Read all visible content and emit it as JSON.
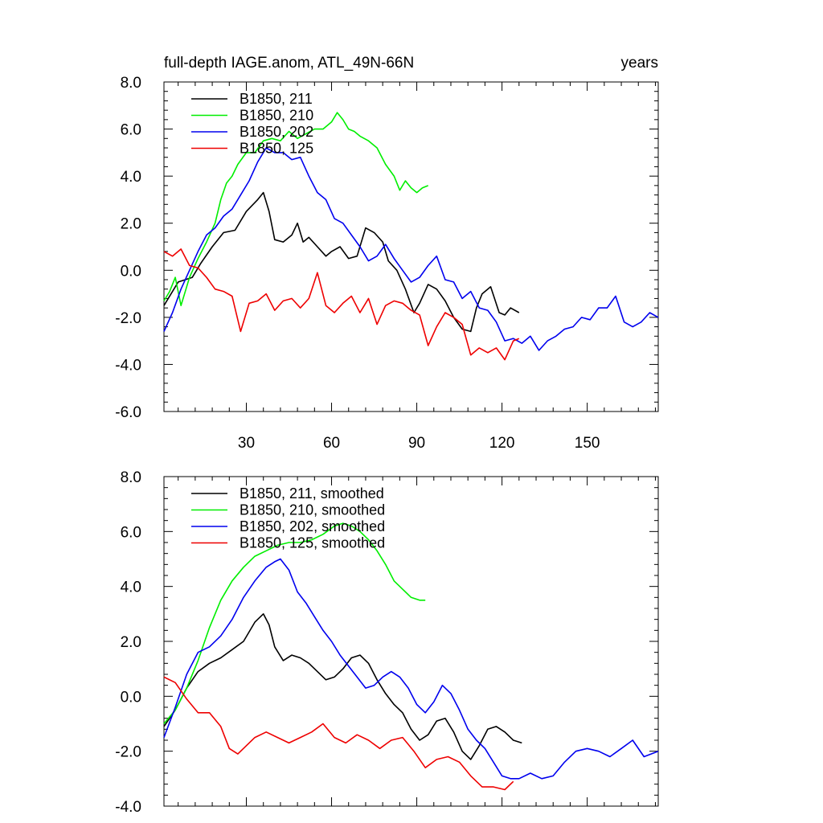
{
  "figure": {
    "title_left": "full-depth IAGE.anom, ATL_49N-66N",
    "title_right": "years",
    "colors": {
      "s211": "#000000",
      "s210": "#00ee00",
      "s202": "#0000ee",
      "s125": "#ee0000"
    }
  },
  "chart_data": [
    {
      "type": "line",
      "xlim": [
        1,
        175
      ],
      "ylim": [
        -6,
        8
      ],
      "yticks": [
        8,
        6,
        4,
        2,
        0,
        -2,
        -4,
        -6
      ],
      "ytick_labels": [
        "8.0",
        "6.0",
        "4.0",
        "2.0",
        "0.0",
        "-2.0",
        "-4.0",
        "-6.0"
      ],
      "xticks": [
        30,
        60,
        90,
        120,
        150
      ],
      "xtick_labels": [
        "30",
        "60",
        "90",
        "120",
        "150"
      ],
      "legend": [
        "B1850, 211",
        "B1850, 210",
        "B1850, 202",
        "B1850, 125"
      ],
      "legend_position": "top-left",
      "series": [
        {
          "name": "B1850, 211",
          "color": "#000000",
          "x": [
            1,
            6,
            11,
            14,
            18,
            22,
            26,
            30,
            34,
            36,
            38,
            40,
            43,
            46,
            48,
            50,
            52,
            55,
            58,
            60,
            63,
            66,
            69,
            72,
            75,
            78,
            80,
            83,
            86,
            89,
            91,
            94,
            97,
            100,
            103,
            106,
            109,
            111,
            113,
            116,
            119,
            121,
            123,
            126
          ],
          "y": [
            -1.5,
            -0.5,
            -0.3,
            0.3,
            1.0,
            1.6,
            1.7,
            2.5,
            3.0,
            3.3,
            2.5,
            1.3,
            1.2,
            1.5,
            2.0,
            1.2,
            1.4,
            1.0,
            0.6,
            0.8,
            1.0,
            0.5,
            0.6,
            1.8,
            1.6,
            1.2,
            0.4,
            0.0,
            -0.8,
            -1.8,
            -1.4,
            -0.6,
            -0.8,
            -1.3,
            -2.0,
            -2.5,
            -2.6,
            -1.6,
            -1.0,
            -0.7,
            -1.8,
            -1.9,
            -1.6,
            -1.8
          ]
        },
        {
          "name": "B1850, 210",
          "color": "#00ee00",
          "x": [
            1,
            3,
            5,
            7,
            10,
            13,
            16,
            19,
            21,
            23,
            25,
            27,
            30,
            33,
            36,
            39,
            42,
            45,
            48,
            51,
            54,
            57,
            60,
            62,
            64,
            66,
            68,
            70,
            73,
            76,
            79,
            82,
            84,
            86,
            88,
            90,
            92,
            94
          ],
          "y": [
            -1.3,
            -0.9,
            -0.3,
            -1.5,
            -0.3,
            0.5,
            1.2,
            2.0,
            3.0,
            3.7,
            4.0,
            4.5,
            5.0,
            5.0,
            5.5,
            5.6,
            5.5,
            5.9,
            5.6,
            5.8,
            6.0,
            6.0,
            6.3,
            6.7,
            6.4,
            6.0,
            5.9,
            5.7,
            5.5,
            5.2,
            4.5,
            4.0,
            3.4,
            3.8,
            3.5,
            3.3,
            3.5,
            3.6
          ]
        },
        {
          "name": "B1850, 202",
          "color": "#0000ee",
          "x": [
            1,
            4,
            7,
            10,
            13,
            16,
            19,
            22,
            25,
            28,
            31,
            34,
            37,
            40,
            43,
            46,
            49,
            52,
            55,
            58,
            61,
            64,
            67,
            70,
            73,
            76,
            79,
            82,
            85,
            88,
            91,
            94,
            97,
            100,
            103,
            106,
            109,
            112,
            115,
            118,
            121,
            124,
            127,
            130,
            133,
            136,
            139,
            142,
            145,
            148,
            151,
            154,
            157,
            160,
            163,
            166,
            169,
            172,
            175
          ],
          "y": [
            -2.6,
            -1.8,
            -0.8,
            0.0,
            0.8,
            1.5,
            1.8,
            2.3,
            2.6,
            3.2,
            3.8,
            4.6,
            5.2,
            5.0,
            5.0,
            4.7,
            4.8,
            4.0,
            3.3,
            3.0,
            2.2,
            2.0,
            1.5,
            1.0,
            0.4,
            0.6,
            1.1,
            0.5,
            0.0,
            -0.5,
            -0.3,
            0.2,
            0.6,
            -0.4,
            -0.5,
            -1.2,
            -0.9,
            -1.6,
            -1.7,
            -2.2,
            -3.0,
            -2.9,
            -3.1,
            -2.8,
            -3.4,
            -3.0,
            -2.8,
            -2.5,
            -2.4,
            -2.0,
            -2.1,
            -1.6,
            -1.6,
            -1.1,
            -2.2,
            -2.4,
            -2.2,
            -1.8,
            -2.0
          ]
        },
        {
          "name": "B1850, 125",
          "color": "#ee0000",
          "x": [
            1,
            4,
            7,
            10,
            13,
            16,
            19,
            22,
            25,
            28,
            31,
            34,
            37,
            40,
            43,
            46,
            49,
            52,
            55,
            58,
            61,
            64,
            67,
            70,
            73,
            76,
            79,
            82,
            85,
            88,
            91,
            94,
            97,
            100,
            103,
            106,
            109,
            112,
            115,
            118,
            121,
            124,
            126
          ],
          "y": [
            0.8,
            0.6,
            0.9,
            0.2,
            0.1,
            -0.3,
            -0.8,
            -0.9,
            -1.1,
            -2.6,
            -1.4,
            -1.3,
            -1.0,
            -1.7,
            -1.3,
            -1.2,
            -1.6,
            -1.2,
            -0.1,
            -1.5,
            -1.8,
            -1.4,
            -1.1,
            -1.8,
            -1.2,
            -2.3,
            -1.5,
            -1.3,
            -1.4,
            -1.7,
            -1.9,
            -3.2,
            -2.4,
            -1.8,
            -2.0,
            -2.3,
            -3.6,
            -3.3,
            -3.5,
            -3.3,
            -3.8,
            -3.0,
            -2.9
          ]
        }
      ]
    },
    {
      "type": "line",
      "xlim": [
        1,
        175
      ],
      "ylim": [
        -4,
        8
      ],
      "yticks": [
        8,
        6,
        4,
        2,
        0,
        -2,
        -4
      ],
      "ytick_labels": [
        "8.0",
        "6.0",
        "4.0",
        "2.0",
        "0.0",
        "-2.0",
        "-4.0"
      ],
      "xticks": [
        30,
        60,
        90,
        120,
        150
      ],
      "xtick_labels": [],
      "legend": [
        "B1850, 211, smoothed",
        "B1850, 210, smoothed",
        "B1850, 202, smoothed",
        "B1850, 125, smoothed"
      ],
      "legend_position": "top-left",
      "series": [
        {
          "name": "B1850, 211, smoothed",
          "color": "#000000",
          "x": [
            1,
            5,
            9,
            13,
            17,
            21,
            25,
            29,
            33,
            36,
            38,
            40,
            43,
            46,
            49,
            52,
            55,
            58,
            61,
            64,
            67,
            70,
            73,
            76,
            79,
            82,
            85,
            88,
            91,
            94,
            97,
            100,
            103,
            106,
            109,
            112,
            115,
            118,
            121,
            124,
            127
          ],
          "y": [
            -1.1,
            -0.5,
            0.3,
            0.9,
            1.2,
            1.4,
            1.7,
            2.0,
            2.7,
            3.0,
            2.6,
            1.8,
            1.3,
            1.5,
            1.4,
            1.2,
            0.9,
            0.6,
            0.7,
            1.0,
            1.4,
            1.5,
            1.2,
            0.6,
            0.1,
            -0.3,
            -0.6,
            -1.2,
            -1.6,
            -1.4,
            -0.9,
            -0.8,
            -1.3,
            -2.0,
            -2.3,
            -1.8,
            -1.2,
            -1.1,
            -1.3,
            -1.6,
            -1.7
          ]
        },
        {
          "name": "B1850, 210, smoothed",
          "color": "#00ee00",
          "x": [
            1,
            5,
            9,
            13,
            17,
            21,
            25,
            29,
            33,
            37,
            41,
            45,
            49,
            53,
            57,
            61,
            64,
            67,
            70,
            73,
            76,
            79,
            82,
            85,
            88,
            91,
            93
          ],
          "y": [
            -1.0,
            -0.5,
            0.3,
            1.3,
            2.5,
            3.5,
            4.2,
            4.7,
            5.1,
            5.3,
            5.5,
            5.6,
            5.6,
            5.7,
            5.9,
            6.2,
            6.3,
            6.2,
            6.0,
            5.7,
            5.3,
            4.8,
            4.2,
            3.9,
            3.6,
            3.5,
            3.5
          ]
        },
        {
          "name": "B1850, 202, smoothed",
          "color": "#0000ee",
          "x": [
            1,
            5,
            9,
            13,
            17,
            21,
            25,
            29,
            33,
            37,
            40,
            42,
            45,
            48,
            51,
            54,
            57,
            60,
            63,
            66,
            69,
            72,
            75,
            78,
            81,
            84,
            87,
            90,
            93,
            96,
            99,
            102,
            105,
            108,
            111,
            114,
            117,
            120,
            123,
            126,
            130,
            134,
            138,
            142,
            146,
            150,
            154,
            158,
            162,
            166,
            170,
            175
          ],
          "y": [
            -1.5,
            -0.4,
            0.8,
            1.6,
            1.8,
            2.2,
            2.8,
            3.6,
            4.2,
            4.7,
            4.9,
            5.0,
            4.6,
            3.8,
            3.4,
            2.9,
            2.4,
            2.0,
            1.5,
            1.1,
            0.7,
            0.3,
            0.4,
            0.7,
            0.9,
            0.7,
            0.3,
            -0.3,
            -0.6,
            -0.2,
            0.4,
            0.1,
            -0.5,
            -1.2,
            -1.6,
            -1.9,
            -2.4,
            -2.9,
            -3.0,
            -3.0,
            -2.8,
            -3.0,
            -2.9,
            -2.4,
            -2.0,
            -1.9,
            -2.0,
            -2.2,
            -1.9,
            -1.6,
            -2.2,
            -2.0
          ]
        },
        {
          "name": "B1850, 125, smoothed",
          "color": "#ee0000",
          "x": [
            1,
            5,
            9,
            13,
            17,
            21,
            24,
            27,
            30,
            33,
            37,
            41,
            45,
            49,
            53,
            57,
            61,
            65,
            69,
            73,
            77,
            81,
            85,
            89,
            93,
            97,
            101,
            105,
            109,
            113,
            117,
            121,
            124
          ],
          "y": [
            0.7,
            0.5,
            -0.1,
            -0.6,
            -0.6,
            -1.1,
            -1.9,
            -2.1,
            -1.8,
            -1.5,
            -1.3,
            -1.5,
            -1.7,
            -1.5,
            -1.3,
            -1.0,
            -1.5,
            -1.7,
            -1.4,
            -1.6,
            -1.9,
            -1.6,
            -1.5,
            -2.0,
            -2.6,
            -2.3,
            -2.2,
            -2.4,
            -2.9,
            -3.3,
            -3.3,
            -3.4,
            -3.1
          ]
        }
      ]
    }
  ]
}
